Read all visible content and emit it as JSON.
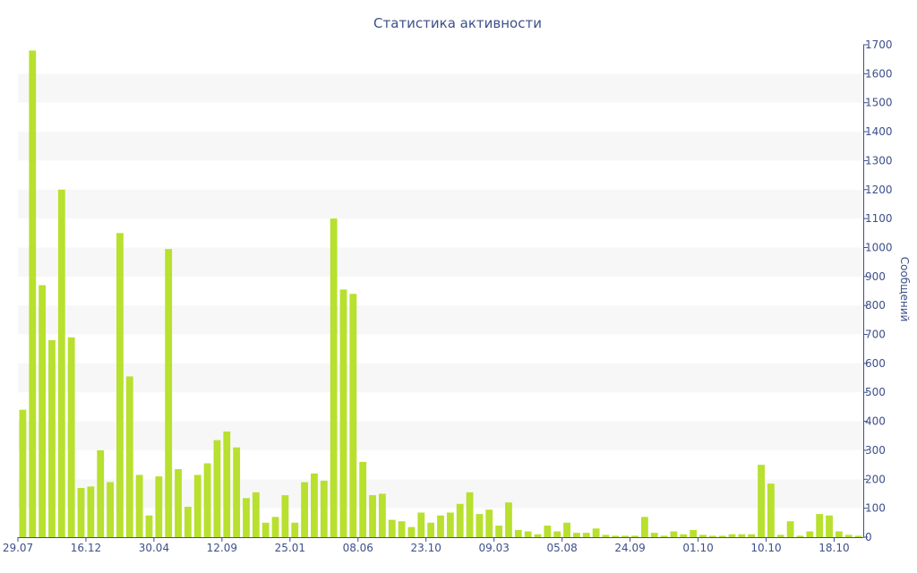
{
  "chart_data": {
    "type": "bar",
    "title": "Статистика активности",
    "ylabel": "Сообщений",
    "ylim": [
      0,
      1700
    ],
    "yticks": [
      0,
      100,
      200,
      300,
      400,
      500,
      600,
      700,
      800,
      900,
      1000,
      1100,
      1200,
      1300,
      1400,
      1500,
      1600,
      1700
    ],
    "y_axis_side": "right",
    "grid": "alternating horizontal bands",
    "colors": {
      "bar": "#b8e02e",
      "band": "#f7f7f7",
      "axis": "#3d4f8a",
      "text": "#3d4f8a"
    },
    "x_tick_labels": [
      {
        "label": "29.07",
        "index": 0
      },
      {
        "label": "16.12",
        "index": 7
      },
      {
        "label": "30.04",
        "index": 14
      },
      {
        "label": "12.09",
        "index": 21
      },
      {
        "label": "25.01",
        "index": 28
      },
      {
        "label": "08.06",
        "index": 35
      },
      {
        "label": "23.10",
        "index": 42
      },
      {
        "label": "09.03",
        "index": 49
      },
      {
        "label": "05.08",
        "index": 56
      },
      {
        "label": "24.09",
        "index": 63
      },
      {
        "label": "01.10",
        "index": 70
      },
      {
        "label": "10.10",
        "index": 77
      },
      {
        "label": "18.10",
        "index": 84
      }
    ],
    "values": [
      440,
      1680,
      870,
      680,
      1200,
      690,
      170,
      175,
      300,
      190,
      1050,
      555,
      215,
      75,
      210,
      995,
      235,
      105,
      215,
      255,
      335,
      365,
      310,
      135,
      155,
      50,
      70,
      145,
      50,
      190,
      220,
      195,
      1100,
      855,
      840,
      260,
      145,
      150,
      60,
      55,
      35,
      85,
      50,
      75,
      85,
      115,
      155,
      80,
      95,
      40,
      120,
      25,
      20,
      10,
      40,
      20,
      50,
      15,
      15,
      30,
      8,
      5,
      5,
      5,
      70,
      15,
      5,
      20,
      10,
      25,
      8,
      5,
      5,
      10,
      10,
      10,
      250,
      185,
      8,
      55,
      5,
      20,
      80,
      75,
      20,
      8,
      5
    ]
  }
}
